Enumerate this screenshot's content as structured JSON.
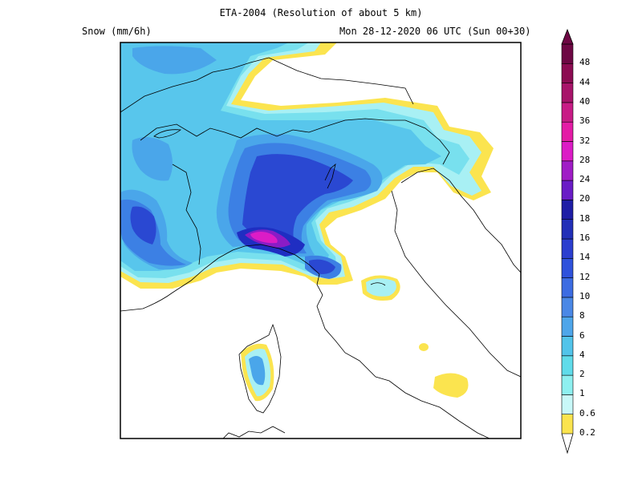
{
  "header": {
    "title": "ETA-2004 (Resolution of about 5 km)",
    "variable": "Snow (mm/6h)",
    "valid_time": "Mon 28-12-2020 06 UTC (Sun 00+30)"
  },
  "legend": {
    "levels": [
      "0.2",
      "0.6",
      "1",
      "2",
      "4",
      "6",
      "8",
      "10",
      "12",
      "14",
      "16",
      "18",
      "20",
      "24",
      "28",
      "32",
      "36",
      "40",
      "44",
      "48"
    ],
    "colors": [
      "#fbe44f",
      "#c8f8f8",
      "#8ef0f0",
      "#60dcea",
      "#52c4ea",
      "#4ea6ea",
      "#4a88e6",
      "#3c6ce2",
      "#2f52dc",
      "#2b3ecf",
      "#222fb8",
      "#1f1ea6",
      "#6a1cc6",
      "#a01cc6",
      "#dc1cc6",
      "#e41ca6",
      "#c81c86",
      "#a8146a",
      "#8c0c52",
      "#6e0844"
    ]
  },
  "map": {
    "region": "Northern Italy, Alps and Corsica",
    "colors": {
      "c02": "#fbe44f",
      "c1": "#a8f0f4",
      "c2": "#78e0ee",
      "c4": "#58c6ec",
      "c6": "#4aa6ea",
      "c8": "#3c80e4",
      "c10": "#3060dc",
      "c12": "#2a48d2",
      "c16": "#1f2ec2",
      "c20": "#8a1cc6",
      "c28": "#dc1cc6",
      "coast": "#000000"
    }
  }
}
